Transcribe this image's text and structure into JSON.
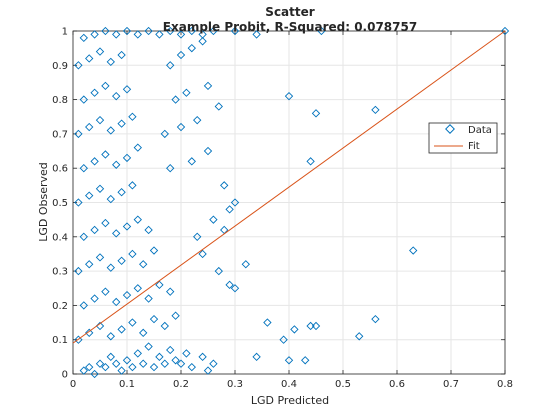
{
  "chart_data": {
    "type": "scatter",
    "title": "Scatter",
    "subtitle": "Example Probit, R-Squared: 0.078757",
    "xlabel": "LGD Predicted",
    "ylabel": "LGD Observed",
    "xlim": [
      0,
      0.8
    ],
    "ylim": [
      0,
      1
    ],
    "x_ticks": [
      "0",
      "0.1",
      "0.2",
      "0.3",
      "0.4",
      "0.5",
      "0.6",
      "0.7",
      "0.8"
    ],
    "y_ticks": [
      "0",
      "0.1",
      "0.2",
      "0.3",
      "0.4",
      "0.5",
      "0.6",
      "0.7",
      "0.8",
      "0.9",
      "1"
    ],
    "grid": true,
    "legend_position": "right",
    "colors": {
      "data": "#0072BD",
      "fit": "#D95319",
      "axis": "#262626",
      "grid": "#e6e6e6"
    },
    "series": [
      {
        "name": "Data",
        "marker": "diamond",
        "points": [
          [
            0.02,
            0.01
          ],
          [
            0.03,
            0.02
          ],
          [
            0.04,
            0.0
          ],
          [
            0.05,
            0.03
          ],
          [
            0.06,
            0.02
          ],
          [
            0.07,
            0.05
          ],
          [
            0.08,
            0.03
          ],
          [
            0.09,
            0.01
          ],
          [
            0.1,
            0.04
          ],
          [
            0.11,
            0.02
          ],
          [
            0.12,
            0.06
          ],
          [
            0.13,
            0.03
          ],
          [
            0.14,
            0.08
          ],
          [
            0.15,
            0.02
          ],
          [
            0.16,
            0.05
          ],
          [
            0.17,
            0.03
          ],
          [
            0.18,
            0.07
          ],
          [
            0.19,
            0.04
          ],
          [
            0.2,
            0.03
          ],
          [
            0.21,
            0.06
          ],
          [
            0.22,
            0.02
          ],
          [
            0.24,
            0.05
          ],
          [
            0.25,
            0.01
          ],
          [
            0.26,
            0.03
          ],
          [
            0.01,
            0.1
          ],
          [
            0.03,
            0.12
          ],
          [
            0.05,
            0.14
          ],
          [
            0.07,
            0.11
          ],
          [
            0.09,
            0.13
          ],
          [
            0.11,
            0.15
          ],
          [
            0.13,
            0.12
          ],
          [
            0.15,
            0.16
          ],
          [
            0.17,
            0.14
          ],
          [
            0.19,
            0.17
          ],
          [
            0.02,
            0.2
          ],
          [
            0.04,
            0.22
          ],
          [
            0.06,
            0.24
          ],
          [
            0.08,
            0.21
          ],
          [
            0.1,
            0.23
          ],
          [
            0.12,
            0.25
          ],
          [
            0.14,
            0.22
          ],
          [
            0.16,
            0.26
          ],
          [
            0.18,
            0.24
          ],
          [
            0.01,
            0.3
          ],
          [
            0.03,
            0.32
          ],
          [
            0.05,
            0.34
          ],
          [
            0.07,
            0.31
          ],
          [
            0.09,
            0.33
          ],
          [
            0.11,
            0.35
          ],
          [
            0.13,
            0.32
          ],
          [
            0.15,
            0.36
          ],
          [
            0.02,
            0.4
          ],
          [
            0.04,
            0.42
          ],
          [
            0.06,
            0.44
          ],
          [
            0.08,
            0.41
          ],
          [
            0.1,
            0.43
          ],
          [
            0.12,
            0.45
          ],
          [
            0.14,
            0.42
          ],
          [
            0.01,
            0.5
          ],
          [
            0.03,
            0.52
          ],
          [
            0.05,
            0.54
          ],
          [
            0.07,
            0.51
          ],
          [
            0.09,
            0.53
          ],
          [
            0.11,
            0.55
          ],
          [
            0.02,
            0.6
          ],
          [
            0.04,
            0.62
          ],
          [
            0.06,
            0.64
          ],
          [
            0.08,
            0.61
          ],
          [
            0.1,
            0.63
          ],
          [
            0.12,
            0.66
          ],
          [
            0.01,
            0.7
          ],
          [
            0.03,
            0.72
          ],
          [
            0.05,
            0.74
          ],
          [
            0.07,
            0.71
          ],
          [
            0.09,
            0.73
          ],
          [
            0.11,
            0.75
          ],
          [
            0.02,
            0.8
          ],
          [
            0.04,
            0.82
          ],
          [
            0.06,
            0.84
          ],
          [
            0.08,
            0.81
          ],
          [
            0.1,
            0.83
          ],
          [
            0.01,
            0.9
          ],
          [
            0.03,
            0.92
          ],
          [
            0.05,
            0.94
          ],
          [
            0.07,
            0.91
          ],
          [
            0.09,
            0.93
          ],
          [
            0.02,
            0.98
          ],
          [
            0.04,
            0.99
          ],
          [
            0.06,
            1.0
          ],
          [
            0.08,
            0.99
          ],
          [
            0.1,
            1.0
          ],
          [
            0.12,
            0.99
          ],
          [
            0.14,
            1.0
          ],
          [
            0.16,
            0.99
          ],
          [
            0.18,
            1.0
          ],
          [
            0.2,
            0.99
          ],
          [
            0.22,
            1.0
          ],
          [
            0.24,
            0.99
          ],
          [
            0.26,
            1.0
          ],
          [
            0.3,
            1.0
          ],
          [
            0.34,
            0.99
          ],
          [
            0.46,
            1.0
          ],
          [
            0.18,
            0.9
          ],
          [
            0.2,
            0.93
          ],
          [
            0.22,
            0.95
          ],
          [
            0.24,
            0.97
          ],
          [
            0.19,
            0.8
          ],
          [
            0.21,
            0.82
          ],
          [
            0.25,
            0.84
          ],
          [
            0.27,
            0.78
          ],
          [
            0.17,
            0.7
          ],
          [
            0.2,
            0.72
          ],
          [
            0.23,
            0.74
          ],
          [
            0.18,
            0.6
          ],
          [
            0.22,
            0.62
          ],
          [
            0.25,
            0.65
          ],
          [
            0.28,
            0.55
          ],
          [
            0.3,
            0.5
          ],
          [
            0.26,
            0.45
          ],
          [
            0.29,
            0.48
          ],
          [
            0.23,
            0.4
          ],
          [
            0.28,
            0.42
          ],
          [
            0.24,
            0.35
          ],
          [
            0.27,
            0.3
          ],
          [
            0.29,
            0.26
          ],
          [
            0.3,
            0.25
          ],
          [
            0.32,
            0.32
          ],
          [
            0.36,
            0.15
          ],
          [
            0.39,
            0.1
          ],
          [
            0.41,
            0.13
          ],
          [
            0.44,
            0.14
          ],
          [
            0.45,
            0.14
          ],
          [
            0.34,
            0.05
          ],
          [
            0.4,
            0.04
          ],
          [
            0.43,
            0.04
          ],
          [
            0.53,
            0.11
          ],
          [
            0.56,
            0.16
          ],
          [
            0.4,
            0.81
          ],
          [
            0.45,
            0.76
          ],
          [
            0.44,
            0.62
          ],
          [
            0.56,
            0.77
          ],
          [
            0.63,
            0.36
          ],
          [
            0.8,
            1.0
          ]
        ]
      },
      {
        "name": "Fit",
        "type": "line",
        "points": [
          [
            0,
            0.09
          ],
          [
            0.8,
            1.0
          ]
        ]
      }
    ]
  }
}
